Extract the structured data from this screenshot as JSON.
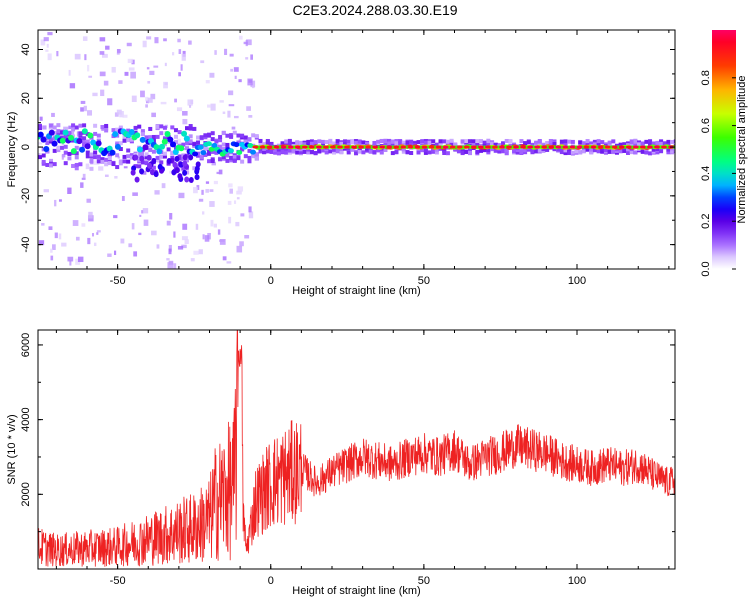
{
  "title": "C2E3.2024.288.03.30.E19",
  "chart_data": [
    {
      "type": "heatmap",
      "title": "C2E3.2024.288.03.30.E19",
      "xlabel": "Height of straight line (km)",
      "ylabel": "Frequency (Hz)",
      "xlim": [
        -76,
        132
      ],
      "ylim": [
        -50,
        48
      ],
      "xticks": [
        -50,
        0,
        50,
        100
      ],
      "yticks": [
        -40,
        -20,
        0,
        20,
        40
      ],
      "grid": false,
      "colorbar": {
        "label": "Normalized spectral amplitude",
        "range": [
          0.0,
          1.0
        ],
        "ticks": [
          0.0,
          0.2,
          0.4,
          0.6,
          0.8
        ],
        "colormap": [
          "#ffffff",
          "#b4a0ff",
          "#6400ff",
          "#0000ff",
          "#00c8ff",
          "#00ff80",
          "#80ff00",
          "#ffff00",
          "#ff8000",
          "#ff0000",
          "#ff0050"
        ]
      },
      "description_ridge": {
        "frequency_center_hz": 0,
        "segments": [
          {
            "x_from": -76,
            "x_to": -25,
            "spread_hz": 8,
            "peak_amplitude": 0.4
          },
          {
            "x_from": -25,
            "x_to": -5,
            "spread_hz": 5,
            "peak_amplitude": 0.45
          },
          {
            "x_from": -5,
            "x_to": 132,
            "spread_hz": 2,
            "peak_amplitude": 0.95
          }
        ]
      }
    },
    {
      "type": "line",
      "xlabel": "Height of straight line (km)",
      "ylabel": "SNR (10 * v/v)",
      "xlim": [
        -76,
        132
      ],
      "ylim": [
        0,
        6400
      ],
      "xticks": [
        -50,
        0,
        50,
        100
      ],
      "yticks": [
        2000,
        4000,
        6000
      ],
      "color": "#ee2222",
      "x": [
        -76,
        -70,
        -60,
        -50,
        -45,
        -40,
        -35,
        -30,
        -25,
        -20,
        -18,
        -15,
        -12,
        -10,
        -9,
        -8,
        -5,
        0,
        5,
        10,
        15,
        20,
        25,
        30,
        35,
        40,
        45,
        50,
        55,
        60,
        65,
        70,
        75,
        80,
        85,
        90,
        95,
        100,
        105,
        110,
        115,
        120,
        125,
        130,
        132
      ],
      "y": [
        600,
        500,
        550,
        600,
        700,
        800,
        900,
        1000,
        1100,
        1300,
        1800,
        2000,
        2200,
        6300,
        1500,
        500,
        1800,
        2300,
        2500,
        2700,
        2300,
        2600,
        2800,
        3000,
        2900,
        2800,
        3000,
        3100,
        3000,
        3200,
        2800,
        3000,
        3100,
        3300,
        3200,
        3100,
        2900,
        2800,
        2700,
        2800,
        2700,
        2800,
        2500,
        2300,
        2400
      ]
    }
  ]
}
